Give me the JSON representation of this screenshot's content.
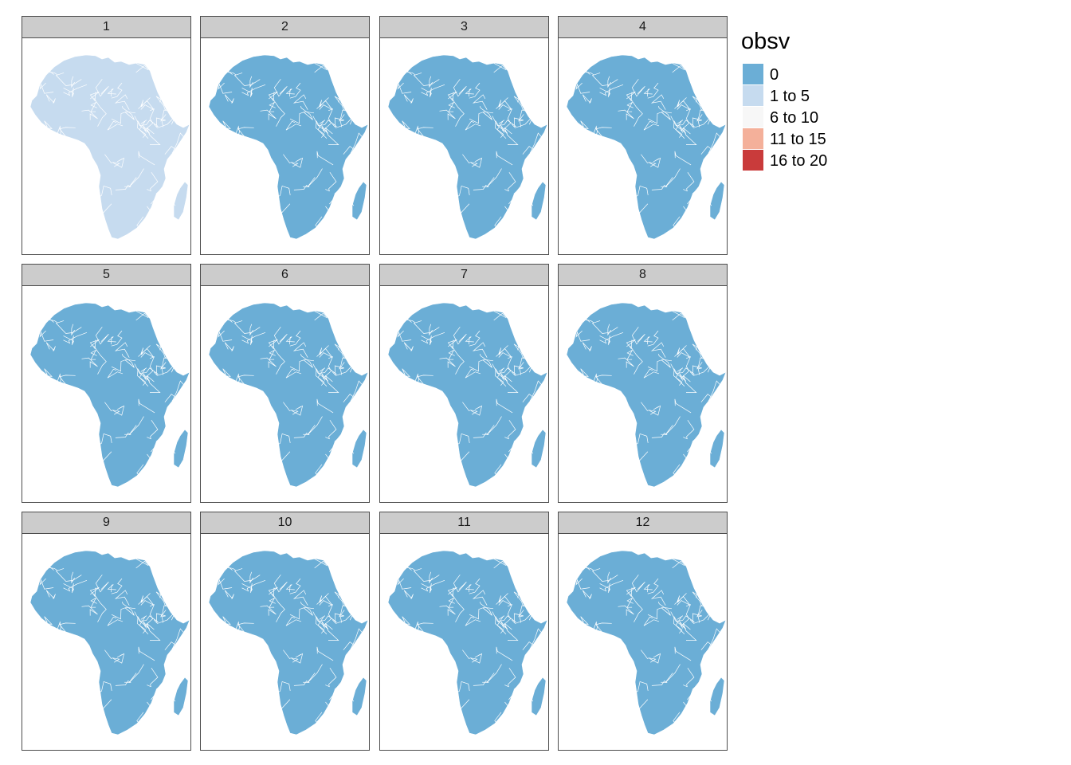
{
  "legend": {
    "title": "obsv",
    "items": [
      {
        "label": "0",
        "color": "#6baed6"
      },
      {
        "label": "1 to 5",
        "color": "#c6dbef"
      },
      {
        "label": "6 to 10",
        "color": "#f7f7f7"
      },
      {
        "label": "11 to 15",
        "color": "#f4b09a"
      },
      {
        "label": "16 to 20",
        "color": "#c93b3b"
      }
    ]
  },
  "panels": [
    {
      "label": "1",
      "fill": "#c6dbef",
      "class": "1 to 5"
    },
    {
      "label": "2",
      "fill": "#6baed6",
      "class": "0"
    },
    {
      "label": "3",
      "fill": "#6baed6",
      "class": "0"
    },
    {
      "label": "4",
      "fill": "#6baed6",
      "class": "0"
    },
    {
      "label": "5",
      "fill": "#6baed6",
      "class": "0"
    },
    {
      "label": "6",
      "fill": "#6baed6",
      "class": "0"
    },
    {
      "label": "7",
      "fill": "#6baed6",
      "class": "0"
    },
    {
      "label": "8",
      "fill": "#6baed6",
      "class": "0"
    },
    {
      "label": "9",
      "fill": "#6baed6",
      "class": "0"
    },
    {
      "label": "10",
      "fill": "#6baed6",
      "class": "0"
    },
    {
      "label": "11",
      "fill": "#6baed6",
      "class": "0"
    },
    {
      "label": "12",
      "fill": "#6baed6",
      "class": "0"
    }
  ]
}
